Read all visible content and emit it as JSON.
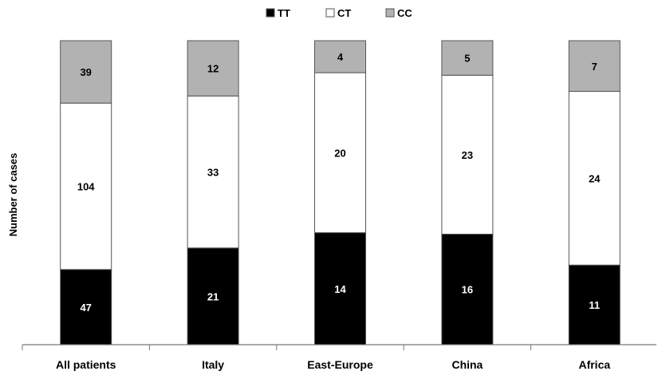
{
  "chart_data": {
    "type": "bar",
    "stacked": true,
    "relative": true,
    "categories": [
      "All patients",
      "Italy",
      "East-Europe",
      "China",
      "Africa"
    ],
    "series": [
      {
        "name": "TT",
        "color": "#000000",
        "label_color": "#ffffff",
        "values": [
          47,
          21,
          14,
          16,
          11
        ]
      },
      {
        "name": "CT",
        "color": "#ffffff",
        "label_color": "#000000",
        "values": [
          104,
          33,
          20,
          23,
          24
        ]
      },
      {
        "name": "CC",
        "color": "#b2b2b2",
        "label_color": "#000000",
        "values": [
          39,
          12,
          4,
          5,
          7
        ]
      }
    ],
    "title": "",
    "xlabel": "",
    "ylabel": "Number of cases",
    "legend_position": "top-center",
    "grid": false
  }
}
